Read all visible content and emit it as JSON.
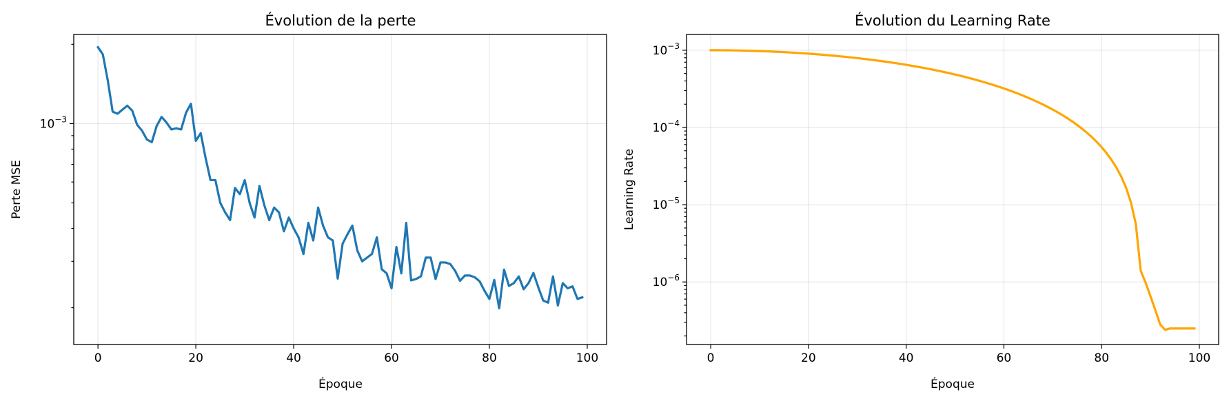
{
  "figure": {
    "charts": [
      {
        "type": "line",
        "title": "Évolution de la perte",
        "xlabel": "Époque",
        "ylabel": "Perte MSE",
        "color": "#1f77b4",
        "yscale": "log",
        "xlim": [
          -4.95,
          103.95
        ],
        "ylim": [
          0.000145,
          0.00218
        ],
        "xticks": [
          0,
          20,
          40,
          60,
          80,
          100
        ],
        "yticks": [
          {
            "base": "10",
            "exp": "−3",
            "value": 0.001
          }
        ],
        "grid": true
      },
      {
        "type": "line",
        "title": "Évolution du Learning Rate",
        "xlabel": "Époque",
        "ylabel": "Learning Rate",
        "color": "#ffa500",
        "yscale": "log",
        "xlim": [
          -4.95,
          103.95
        ],
        "ylim": [
          1.55e-07,
          0.0016
        ],
        "xticks": [
          0,
          20,
          40,
          60,
          80,
          100
        ],
        "yticks": [
          {
            "base": "10",
            "exp": "−3",
            "value": 0.001
          },
          {
            "base": "10",
            "exp": "−4",
            "value": 0.0001
          },
          {
            "base": "10",
            "exp": "−5",
            "value": 1e-05
          },
          {
            "base": "10",
            "exp": "−6",
            "value": 1e-06
          }
        ],
        "grid": true
      }
    ]
  },
  "chart_data": [
    {
      "type": "line",
      "title": "Évolution de la perte",
      "xlabel": "Époque",
      "ylabel": "Perte MSE",
      "yscale": "log",
      "x": [
        0,
        1,
        2,
        3,
        4,
        5,
        6,
        7,
        8,
        9,
        10,
        11,
        12,
        13,
        14,
        15,
        16,
        17,
        18,
        19,
        20,
        21,
        22,
        23,
        24,
        25,
        26,
        27,
        28,
        29,
        30,
        31,
        32,
        33,
        34,
        35,
        36,
        37,
        38,
        39,
        40,
        41,
        42,
        43,
        44,
        45,
        46,
        47,
        48,
        49,
        50,
        51,
        52,
        53,
        54,
        55,
        56,
        57,
        58,
        59,
        60,
        61,
        62,
        63,
        64,
        65,
        66,
        67,
        68,
        69,
        70,
        71,
        72,
        73,
        74,
        75,
        76,
        77,
        78,
        79,
        80,
        81,
        82,
        83,
        84,
        85,
        86,
        87,
        88,
        89,
        90,
        91,
        92,
        93,
        94,
        95,
        96,
        97,
        98,
        99
      ],
      "series": [
        {
          "values": [
            0.00195,
            0.00183,
            0.00146,
            0.00111,
            0.00109,
            0.00113,
            0.00117,
            0.00112,
            0.00099,
            0.00094,
            0.00087,
            0.00085,
            0.00098,
            0.00106,
            0.00101,
            0.00095,
            0.00096,
            0.00095,
            0.0011,
            0.00119,
            0.00086,
            0.00092,
            0.00074,
            0.00061,
            0.00061,
            0.0005,
            0.00046,
            0.00043,
            0.00057,
            0.00054,
            0.00061,
            0.0005,
            0.00044,
            0.00058,
            0.00049,
            0.00043,
            0.00048,
            0.00046,
            0.00039,
            0.00044,
            0.0004,
            0.00037,
            0.00032,
            0.00042,
            0.00036,
            0.00048,
            0.00041,
            0.00037,
            0.00036,
            0.000258,
            0.00035,
            0.00038,
            0.00041,
            0.00033,
            0.0003,
            0.00031,
            0.00032,
            0.00037,
            0.00028,
            0.00027,
            0.000237,
            0.00034,
            0.00027,
            0.00042,
            0.000254,
            0.000257,
            0.000263,
            0.00031,
            0.00031,
            0.000257,
            0.000297,
            0.000297,
            0.000293,
            0.000276,
            0.000253,
            0.000265,
            0.000265,
            0.000261,
            0.000252,
            0.000232,
            0.000216,
            0.000255,
            0.000199,
            0.000279,
            0.000242,
            0.000248,
            0.000263,
            0.000235,
            0.000248,
            0.000271,
            0.000239,
            0.000213,
            0.000209,
            0.000263,
            0.000204,
            0.000248,
            0.000237,
            0.000241,
            0.000216,
            0.000219
          ]
        }
      ]
    },
    {
      "type": "line",
      "title": "Évolution du Learning Rate",
      "xlabel": "Époque",
      "ylabel": "Learning Rate",
      "yscale": "log",
      "x": [
        0,
        1,
        2,
        3,
        4,
        5,
        6,
        7,
        8,
        9,
        10,
        11,
        12,
        13,
        14,
        15,
        16,
        17,
        18,
        19,
        20,
        21,
        22,
        23,
        24,
        25,
        26,
        27,
        28,
        29,
        30,
        31,
        32,
        33,
        34,
        35,
        36,
        37,
        38,
        39,
        40,
        41,
        42,
        43,
        44,
        45,
        46,
        47,
        48,
        49,
        50,
        51,
        52,
        53,
        54,
        55,
        56,
        57,
        58,
        59,
        60,
        61,
        62,
        63,
        64,
        65,
        66,
        67,
        68,
        69,
        70,
        71,
        72,
        73,
        74,
        75,
        76,
        77,
        78,
        79,
        80,
        81,
        82,
        83,
        84,
        85,
        86,
        87,
        88,
        89,
        90,
        91,
        92,
        93,
        94,
        95,
        96,
        97,
        98,
        99
      ],
      "series": [
        {
          "values": [
            0.001,
            0.0009998,
            0.000999,
            0.0009978,
            0.000996,
            0.0009938,
            0.000991,
            0.0009878,
            0.000984,
            0.0009797,
            0.000975,
            0.0009698,
            0.0009641,
            0.0009579,
            0.0009513,
            0.0009443,
            0.0009368,
            0.0009289,
            0.0009205,
            0.0009118,
            0.0009026,
            0.000893,
            0.0008831,
            0.0008727,
            0.000862,
            0.0008509,
            0.0008394,
            0.0008277,
            0.0008155,
            0.0008031,
            0.0007903,
            0.0007772,
            0.0007638,
            0.0007501,
            0.0007361,
            0.0007219,
            0.0007074,
            0.0006926,
            0.0006777,
            0.0006625,
            0.0006471,
            0.0006315,
            0.0006157,
            0.0005998,
            0.0005837,
            0.0005675,
            0.0005512,
            0.0005347,
            0.0005182,
            0.0005016,
            0.0004849,
            0.0004683,
            0.0004516,
            0.0004349,
            0.0004182,
            0.0004016,
            0.000385,
            0.0003686,
            0.0003522,
            0.0003359,
            0.0003198,
            0.0003039,
            0.0002881,
            0.0002725,
            0.0002572,
            0.000242,
            0.0002271,
            0.0002125,
            0.0001982,
            0.0001842,
            0.0001705,
            0.0001572,
            0.0001442,
            0.0001316,
            0.0001194,
            0.0001076,
            9.63e-05,
            8.54e-05,
            7.5e-05,
            6.5e-05,
            5.55e-05,
            4.66e-05,
            3.82e-05,
            3.04e-05,
            2.32e-05,
            1.66e-05,
            1.07e-05,
            5.6e-06,
            1.4e-06,
            9.8e-07,
            6.5e-07,
            4.3e-07,
            2.8e-07,
            2.4e-07,
            2.5e-07,
            2.5e-07,
            2.5e-07,
            2.5e-07,
            2.5e-07,
            2.5e-07
          ]
        }
      ]
    }
  ]
}
